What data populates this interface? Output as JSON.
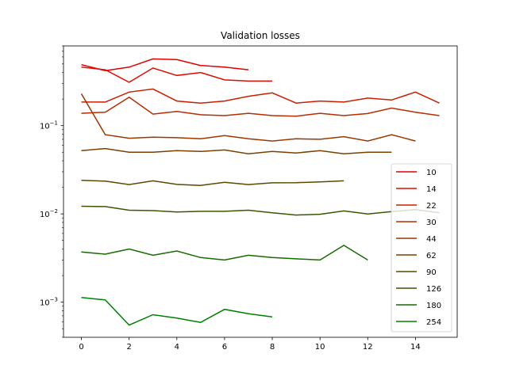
{
  "chart_data": {
    "type": "line",
    "title": "Validation losses",
    "xlabel": "",
    "ylabel": "",
    "xlim": [
      -0.75,
      15.75
    ],
    "ylim": [
      0.0004,
      0.8
    ],
    "yscale": "log",
    "grid": false,
    "legend_position": "right",
    "x_ticks": [
      0,
      2,
      4,
      6,
      8,
      10,
      12,
      14
    ],
    "x_tick_labels": [
      "0",
      "2",
      "4",
      "6",
      "8",
      "10",
      "12",
      "14"
    ],
    "y_ticks": [
      0.001,
      0.01,
      0.1
    ],
    "y_tick_labels": [
      "10^-3",
      "10^-2",
      "10^-1"
    ],
    "series": [
      {
        "name": "10",
        "color": "#e00000",
        "x": [
          0,
          1,
          2,
          3,
          4,
          5,
          6,
          7
        ],
        "values": [
          0.49,
          0.42,
          0.46,
          0.57,
          0.56,
          0.48,
          0.46,
          0.43
        ]
      },
      {
        "name": "14",
        "color": "#db0f00",
        "x": [
          0,
          1,
          2,
          3,
          4,
          5,
          6,
          7,
          8
        ],
        "values": [
          0.46,
          0.43,
          0.31,
          0.45,
          0.37,
          0.4,
          0.33,
          0.32,
          0.32
        ]
      },
      {
        "name": "22",
        "color": "#cb1d00",
        "x": [
          0,
          1,
          2,
          3,
          4,
          5,
          6,
          7,
          8,
          9,
          10,
          11,
          12,
          13,
          14,
          15
        ],
        "values": [
          0.185,
          0.185,
          0.24,
          0.26,
          0.19,
          0.18,
          0.19,
          0.215,
          0.235,
          0.18,
          0.19,
          0.185,
          0.205,
          0.195,
          0.24,
          0.18
        ]
      },
      {
        "name": "30",
        "color": "#b92b00",
        "x": [
          0,
          1,
          2,
          3,
          4,
          5,
          6,
          7,
          8,
          9,
          10,
          11,
          12,
          13,
          14,
          15
        ],
        "values": [
          0.138,
          0.142,
          0.21,
          0.135,
          0.145,
          0.133,
          0.13,
          0.138,
          0.13,
          0.128,
          0.138,
          0.13,
          0.137,
          0.158,
          0.142,
          0.13
        ]
      },
      {
        "name": "44",
        "color": "#9c3600",
        "x": [
          0,
          1,
          2,
          3,
          4,
          5,
          6,
          7,
          8,
          9,
          10,
          11,
          12,
          13,
          14
        ],
        "values": [
          0.23,
          0.079,
          0.072,
          0.074,
          0.073,
          0.071,
          0.077,
          0.071,
          0.067,
          0.071,
          0.07,
          0.075,
          0.067,
          0.079,
          0.067
        ]
      },
      {
        "name": "62",
        "color": "#7b3f00",
        "x": [
          0,
          1,
          2,
          3,
          4,
          5,
          6,
          7,
          8,
          9,
          10,
          11,
          12,
          13
        ],
        "values": [
          0.052,
          0.055,
          0.05,
          0.05,
          0.052,
          0.051,
          0.053,
          0.048,
          0.051,
          0.049,
          0.052,
          0.048,
          0.05,
          0.05
        ]
      },
      {
        "name": "90",
        "color": "#5e4700",
        "x": [
          0,
          1,
          2,
          3,
          4,
          5,
          6,
          7,
          8,
          9,
          10,
          11
        ],
        "values": [
          0.024,
          0.0235,
          0.0215,
          0.0237,
          0.0216,
          0.021,
          0.0228,
          0.0215,
          0.0225,
          0.0226,
          0.023,
          0.0237
        ]
      },
      {
        "name": "126",
        "color": "#3a5700",
        "x": [
          0,
          1,
          2,
          3,
          4,
          5,
          6,
          7,
          8,
          9,
          10,
          11,
          12,
          13,
          14,
          15
        ],
        "values": [
          0.0122,
          0.0121,
          0.011,
          0.0109,
          0.0105,
          0.0107,
          0.0107,
          0.011,
          0.0103,
          0.0097,
          0.0099,
          0.0108,
          0.01,
          0.0106,
          0.0112,
          0.0103
        ]
      },
      {
        "name": "180",
        "color": "#156b00",
        "x": [
          0,
          1,
          2,
          3,
          4,
          5,
          6,
          7,
          8,
          9,
          10,
          11,
          12
        ],
        "values": [
          0.0037,
          0.0035,
          0.004,
          0.0034,
          0.0038,
          0.0032,
          0.003,
          0.0034,
          0.0032,
          0.0031,
          0.003,
          0.0044,
          0.003
        ]
      },
      {
        "name": "254",
        "color": "#008000",
        "x": [
          0,
          1,
          2,
          3,
          4,
          5,
          6,
          7,
          8
        ],
        "values": [
          0.00113,
          0.00106,
          0.00055,
          0.00072,
          0.00066,
          0.00059,
          0.00083,
          0.00074,
          0.00068
        ]
      }
    ]
  }
}
